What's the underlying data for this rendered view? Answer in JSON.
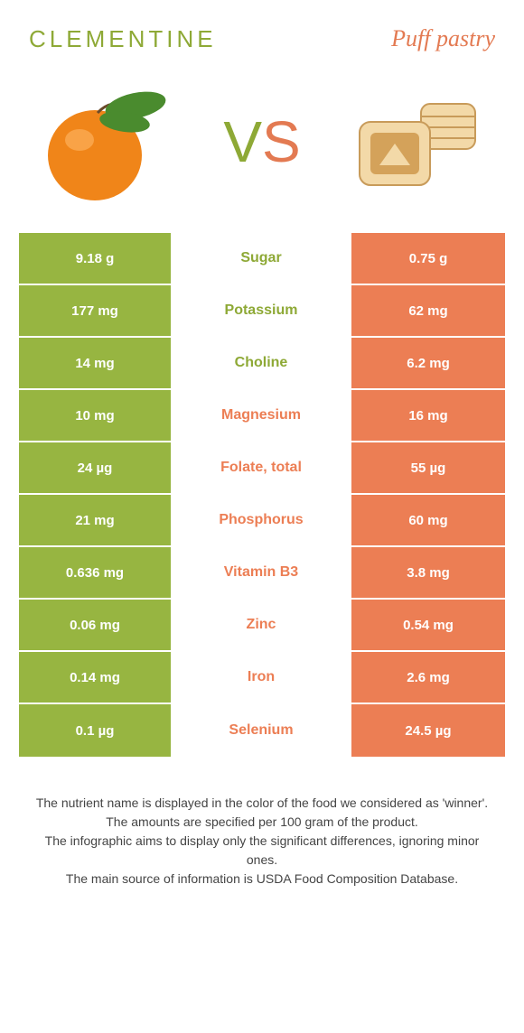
{
  "header": {
    "left_title": "CLEMENTINE",
    "right_title": "Puff pastry"
  },
  "colors": {
    "left": "#97b541",
    "right": "#ec7e54",
    "left_text": "#8ea936",
    "right_text": "#ec7e54"
  },
  "vs": {
    "v": "V",
    "s": "S"
  },
  "rows": [
    {
      "left": "9.18 g",
      "label": "Sugar",
      "right": "0.75 g",
      "winner": "left"
    },
    {
      "left": "177 mg",
      "label": "Potassium",
      "right": "62 mg",
      "winner": "left"
    },
    {
      "left": "14 mg",
      "label": "Choline",
      "right": "6.2 mg",
      "winner": "left"
    },
    {
      "left": "10 mg",
      "label": "Magnesium",
      "right": "16 mg",
      "winner": "right"
    },
    {
      "left": "24 µg",
      "label": "Folate, total",
      "right": "55 µg",
      "winner": "right"
    },
    {
      "left": "21 mg",
      "label": "Phosphorus",
      "right": "60 mg",
      "winner": "right"
    },
    {
      "left": "0.636 mg",
      "label": "Vitamin B3",
      "right": "3.8 mg",
      "winner": "right"
    },
    {
      "left": "0.06 mg",
      "label": "Zinc",
      "right": "0.54 mg",
      "winner": "right"
    },
    {
      "left": "0.14 mg",
      "label": "Iron",
      "right": "2.6 mg",
      "winner": "right"
    },
    {
      "left": "0.1 µg",
      "label": "Selenium",
      "right": "24.5 µg",
      "winner": "right"
    }
  ],
  "footer": {
    "line1": "The nutrient name is displayed in the color of the food we considered as 'winner'.",
    "line2": "The amounts are specified per 100 gram of the product.",
    "line3": "The infographic aims to display only the significant differences, ignoring minor ones.",
    "line4": "The main source of information is USDA Food Composition Database."
  }
}
